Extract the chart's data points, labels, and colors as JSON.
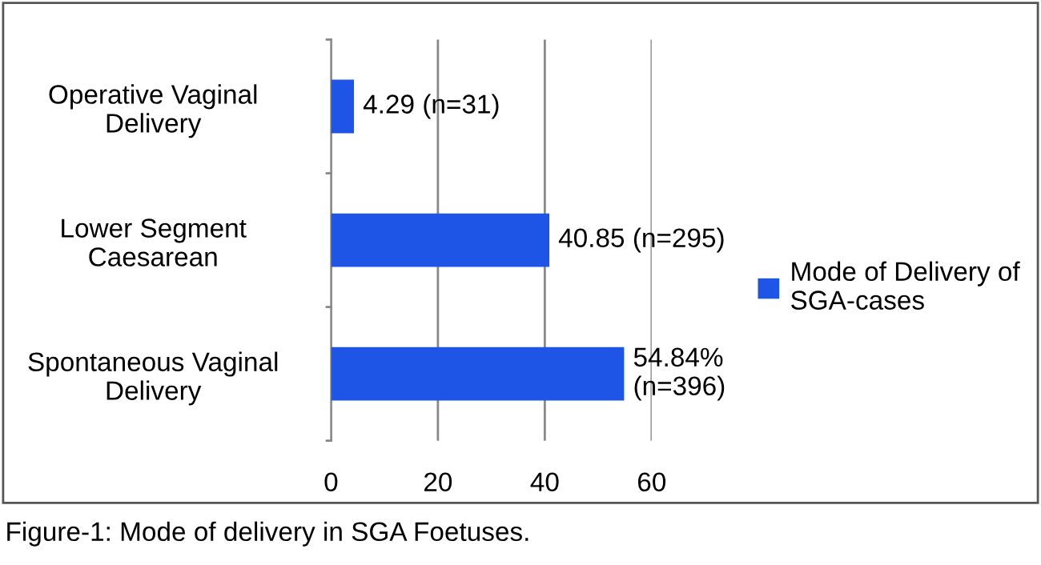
{
  "chart_data": {
    "type": "bar",
    "orientation": "horizontal",
    "categories": [
      "Operative Vaginal\nDelivery",
      "Lower Segment\nCaesarean",
      "Spontaneous Vaginal\nDelivery"
    ],
    "series": [
      {
        "name": "Mode of Delivery of\nSGA-cases",
        "color": "#1f55e6",
        "values": [
          4.29,
          40.85,
          54.84
        ],
        "value_labels": [
          "4.29 (n=31)",
          "40.85 (n=295)",
          "54.84%\n(n=396)"
        ]
      }
    ],
    "xlim": [
      0,
      60
    ],
    "xticks": [
      0,
      20,
      40,
      60
    ],
    "grid": "x",
    "legend": "right",
    "annotations": [
      "Figure-1: Mode of delivery in SGA Foetuses."
    ]
  }
}
